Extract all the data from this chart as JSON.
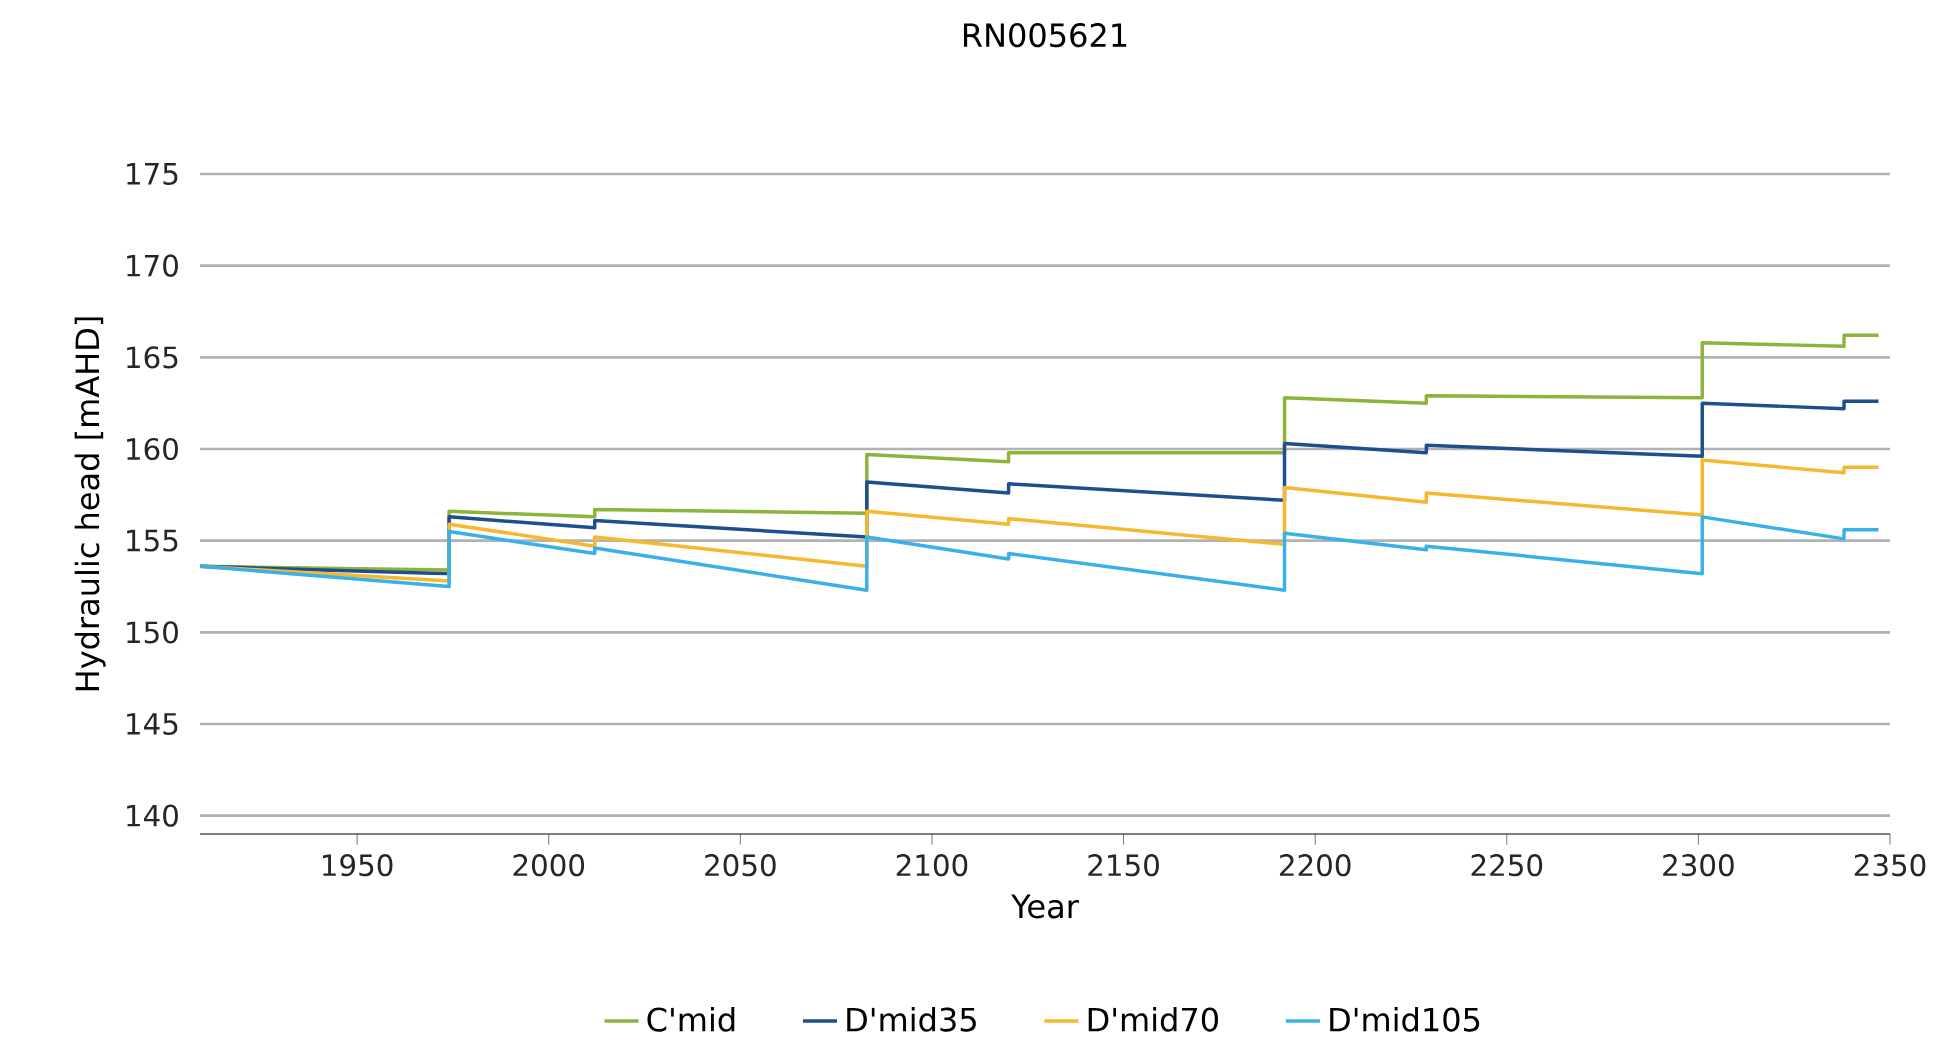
{
  "chart_data": {
    "type": "line",
    "title": "RN005621",
    "xlabel": "Year",
    "ylabel": "Hydraulic head [mAHD]",
    "x": [
      1909,
      1974,
      1974,
      2012,
      2012,
      2083,
      2083,
      2120,
      2120,
      2192,
      2192,
      2229,
      2229,
      2301,
      2301,
      2338,
      2338,
      2347
    ],
    "series": [
      {
        "name": "C'mid",
        "color": "#8cb43c",
        "values": [
          153.6,
          153.4,
          156.6,
          156.3,
          156.7,
          156.5,
          159.7,
          159.3,
          159.8,
          159.8,
          162.8,
          162.5,
          162.9,
          162.8,
          165.8,
          165.6,
          166.2,
          166.2
        ]
      },
      {
        "name": "D'mid35",
        "color": "#1f4e8c",
        "values": [
          153.6,
          153.2,
          156.3,
          155.7,
          156.1,
          155.2,
          158.2,
          157.6,
          158.1,
          157.2,
          160.3,
          159.8,
          160.2,
          159.6,
          162.5,
          162.2,
          162.6,
          162.6
        ]
      },
      {
        "name": "D'mid70",
        "color": "#f5b82e",
        "values": [
          153.6,
          152.8,
          155.9,
          154.7,
          155.2,
          153.6,
          156.6,
          155.9,
          156.2,
          154.8,
          157.9,
          157.1,
          157.6,
          156.4,
          159.4,
          158.7,
          159.0,
          159.0
        ]
      },
      {
        "name": "D'mid105",
        "color": "#3ab0e8",
        "values": [
          153.6,
          152.5,
          155.5,
          154.3,
          154.6,
          152.3,
          155.2,
          154.0,
          154.3,
          152.3,
          155.4,
          154.5,
          154.7,
          153.2,
          156.3,
          155.1,
          155.6,
          155.6
        ]
      }
    ],
    "xlim": [
      1909,
      2350
    ],
    "ylim": [
      139,
      175
    ],
    "xticks": [
      1950,
      2000,
      2050,
      2100,
      2150,
      2200,
      2250,
      2300,
      2350
    ],
    "yticks": [
      140,
      145,
      150,
      155,
      160,
      165,
      170,
      175
    ],
    "grid": "y",
    "legend": "bottom",
    "marker": "none",
    "line_style": "solid"
  }
}
